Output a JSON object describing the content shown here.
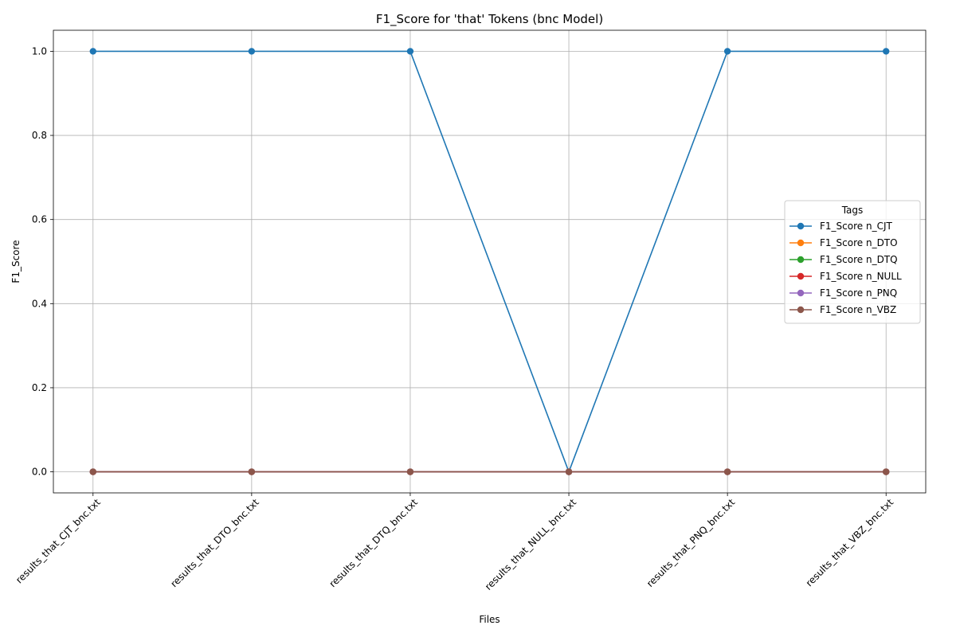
{
  "chart_data": {
    "type": "line",
    "title": "F1_Score for 'that' Tokens (bnc Model)",
    "xlabel": "Files",
    "ylabel": "F1_Score",
    "categories": [
      "results_that_CJT_bnc.txt",
      "results_that_DTO_bnc.txt",
      "results_that_DTQ_bnc.txt",
      "results_that_NULL_bnc.txt",
      "results_that_PNQ_bnc.txt",
      "results_that_VBZ_bnc.txt"
    ],
    "yticks": [
      0.0,
      0.2,
      0.4,
      0.6,
      0.8,
      1.0
    ],
    "ylim": [
      -0.05,
      1.05
    ],
    "grid": true,
    "legend": {
      "title": "Tags",
      "placement": "center-right"
    },
    "series": [
      {
        "name": "F1_Score n_CJT",
        "color": "#1f77b4",
        "values": [
          1,
          1,
          1,
          0,
          1,
          1
        ]
      },
      {
        "name": "F1_Score n_DTO",
        "color": "#ff7f0e",
        "values": [
          0,
          0,
          0,
          0,
          0,
          0
        ]
      },
      {
        "name": "F1_Score n_DTQ",
        "color": "#2ca02c",
        "values": [
          0,
          0,
          0,
          0,
          0,
          0
        ]
      },
      {
        "name": "F1_Score n_NULL",
        "color": "#d62728",
        "values": [
          0,
          0,
          0,
          0,
          0,
          0
        ]
      },
      {
        "name": "F1_Score n_PNQ",
        "color": "#9467bd",
        "values": [
          0,
          0,
          0,
          0,
          0,
          0
        ]
      },
      {
        "name": "F1_Score n_VBZ",
        "color": "#8c564b",
        "values": [
          0,
          0,
          0,
          0,
          0,
          0
        ]
      }
    ]
  }
}
